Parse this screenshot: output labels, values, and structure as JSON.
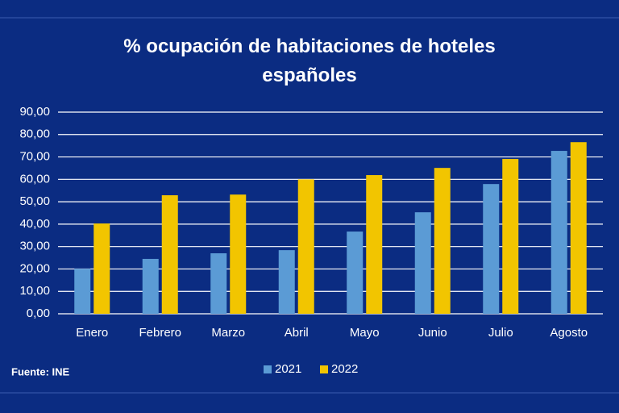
{
  "chart_data": {
    "type": "bar",
    "title": "% ocupación de habitaciones de hoteles españoles",
    "source": "Fuente: INE",
    "categories": [
      "Enero",
      "Febrero",
      "Marzo",
      "Abril",
      "Mayo",
      "Junio",
      "Julio",
      "Agosto"
    ],
    "series": [
      {
        "name": "2021",
        "color": "#5b9bd5",
        "values": [
          20.1,
          24.5,
          27.0,
          28.4,
          36.7,
          45.3,
          57.9,
          72.7
        ]
      },
      {
        "name": "2022",
        "color": "#f2c500",
        "values": [
          40.3,
          52.9,
          53.2,
          60.0,
          61.9,
          65.1,
          69.1,
          76.6
        ]
      }
    ],
    "ylim": [
      0,
      90
    ],
    "yticks": [
      {
        "value": 0,
        "label": "0,00"
      },
      {
        "value": 10,
        "label": "10,00"
      },
      {
        "value": 20,
        "label": "20,00"
      },
      {
        "value": 30,
        "label": "30,00"
      },
      {
        "value": 40,
        "label": "40,00"
      },
      {
        "value": 50,
        "label": "50,00"
      },
      {
        "value": 60,
        "label": "60,00"
      },
      {
        "value": 70,
        "label": "70,00"
      },
      {
        "value": 80,
        "label": "80,00"
      },
      {
        "value": 90,
        "label": "90,00"
      }
    ],
    "grid": true,
    "legend": "bottom"
  }
}
